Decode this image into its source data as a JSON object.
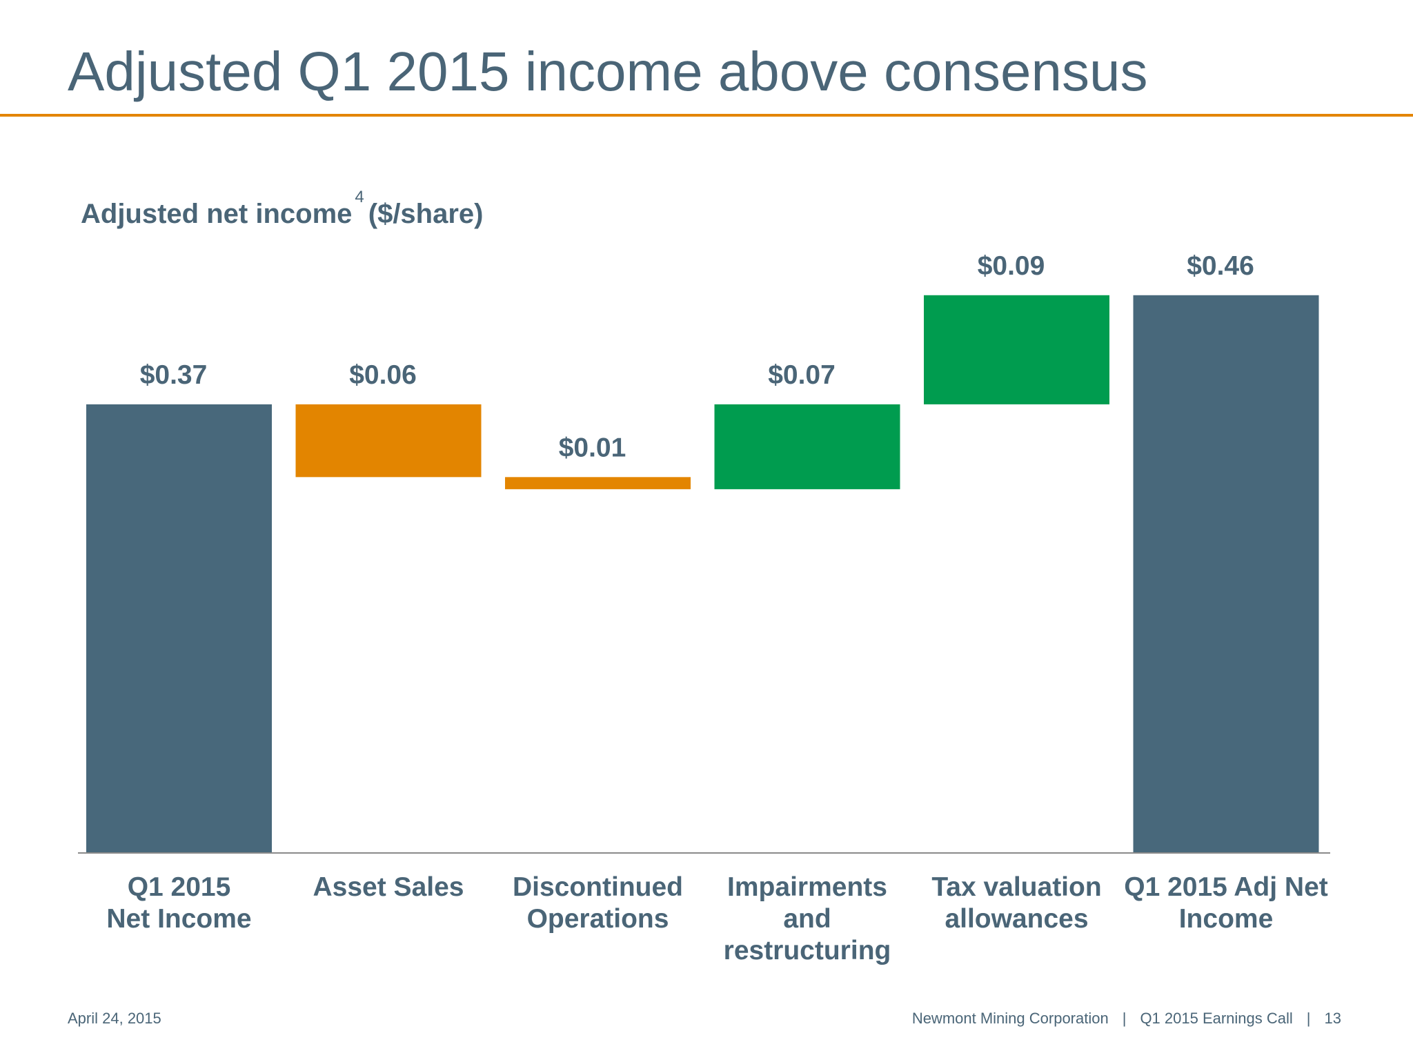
{
  "slide": {
    "title": "Adjusted Q1 2015 income above consensus"
  },
  "chart_data": {
    "type": "waterfall",
    "title": "Adjusted net income",
    "title_superscript": "4",
    "title_suffix": "($/share)",
    "ylim": [
      0,
      0.49
    ],
    "grid": false,
    "legend": "none",
    "categories": [
      "Q1 2015 Net Income",
      "Asset Sales",
      "Discontinued Operations",
      "Impairments and restructuring",
      "Tax valuation allowances",
      "Q1 2015 Adj Net Income"
    ],
    "category_lines": [
      [
        "Q1 2015",
        "Net Income"
      ],
      [
        "Asset Sales"
      ],
      [
        "Discontinued",
        "Operations"
      ],
      [
        "Impairments",
        "and",
        "restructuring"
      ],
      [
        "Tax valuation",
        "allowances"
      ],
      [
        "Q1 2015 Adj Net",
        "Income"
      ]
    ],
    "bars": [
      {
        "label": "$0.37",
        "start": 0,
        "end": 0.37,
        "kind": "total"
      },
      {
        "label": "$0.06",
        "start": 0.37,
        "end": 0.31,
        "kind": "decrease"
      },
      {
        "label": "$0.01",
        "start": 0.31,
        "end": 0.3,
        "kind": "decrease"
      },
      {
        "label": "$0.07",
        "start": 0.3,
        "end": 0.37,
        "kind": "increase"
      },
      {
        "label": "$0.09",
        "start": 0.37,
        "end": 0.46,
        "kind": "increase"
      },
      {
        "label": "$0.46",
        "start": 0,
        "end": 0.46,
        "kind": "total"
      }
    ],
    "colors": {
      "total": "#48687b",
      "decrease": "#e38500",
      "increase": "#009c4f",
      "axis": "#8a8a8a"
    }
  },
  "footer": {
    "date": "April 24, 2015",
    "company": "Newmont Mining Corporation",
    "event": "Q1 2015 Earnings Call",
    "separator": "|",
    "page_number": "13"
  }
}
